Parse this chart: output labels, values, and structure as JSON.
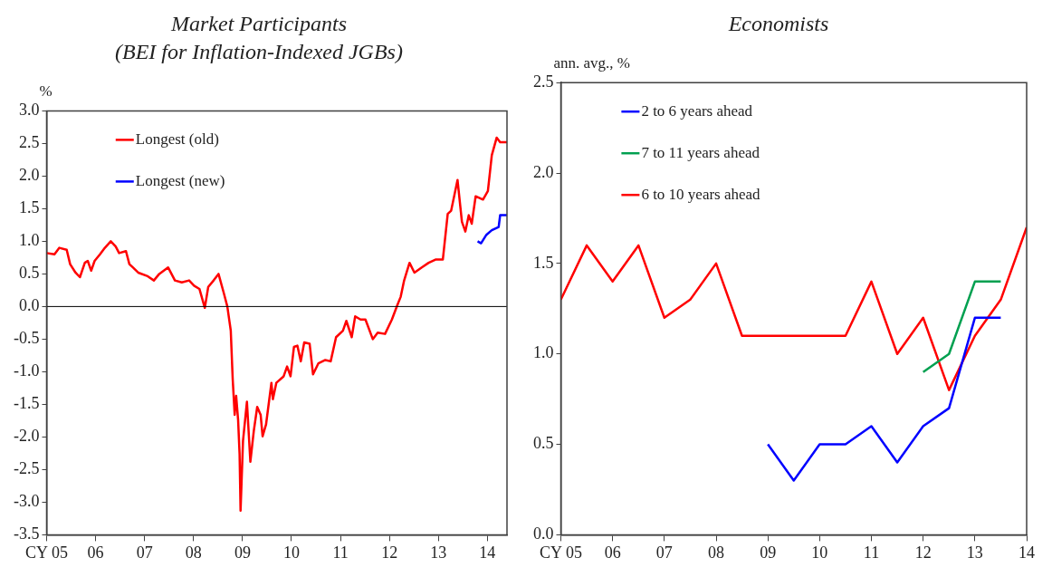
{
  "chart_data": [
    {
      "type": "line",
      "title": "Market Participants\n(BEI for Inflation-Indexed JGBs)",
      "ylabel": "%",
      "xlim": [
        2005,
        2014.4
      ],
      "xticks": [
        {
          "value": 2005,
          "label": "CY 05"
        },
        {
          "value": 2006,
          "label": "06"
        },
        {
          "value": 2007,
          "label": "07"
        },
        {
          "value": 2008,
          "label": "08"
        },
        {
          "value": 2009,
          "label": "09"
        },
        {
          "value": 2010,
          "label": "10"
        },
        {
          "value": 2011,
          "label": "11"
        },
        {
          "value": 2012,
          "label": "12"
        },
        {
          "value": 2013,
          "label": "13"
        },
        {
          "value": 2014,
          "label": "14"
        }
      ],
      "ylim": [
        -3.5,
        3
      ],
      "yticks": [
        {
          "value": -3.5,
          "label": "-3.5"
        },
        {
          "value": -3,
          "label": "-3.0"
        },
        {
          "value": -2.5,
          "label": "-2.5"
        },
        {
          "value": -2,
          "label": "-2.0"
        },
        {
          "value": -1.5,
          "label": "-1.5"
        },
        {
          "value": -1,
          "label": "-1.0"
        },
        {
          "value": -0.5,
          "label": "-0.5"
        },
        {
          "value": 0,
          "label": "0.0"
        },
        {
          "value": 0.5,
          "label": "0.5"
        },
        {
          "value": 1,
          "label": "1.0"
        },
        {
          "value": 1.5,
          "label": "1.5"
        },
        {
          "value": 2,
          "label": "2.0"
        },
        {
          "value": 2.5,
          "label": "2.5"
        },
        {
          "value": 3,
          "label": "3.0"
        }
      ],
      "legend": "top left",
      "ref_lines": [
        {
          "axis": "y",
          "value": 0,
          "color": "#000000"
        }
      ],
      "series": [
        {
          "name": "Longest (old)",
          "color": "#ff0000",
          "x": [
            2005.0,
            2005.16,
            2005.26,
            2005.41,
            2005.48,
            2005.59,
            2005.68,
            2005.78,
            2005.84,
            2005.91,
            2005.98,
            2006.09,
            2006.19,
            2006.31,
            2006.41,
            2006.48,
            2006.62,
            2006.69,
            2006.76,
            2006.87,
            2007.05,
            2007.19,
            2007.3,
            2007.48,
            2007.62,
            2007.76,
            2007.91,
            2008.01,
            2008.12,
            2008.23,
            2008.3,
            2008.41,
            2008.51,
            2008.62,
            2008.69,
            2008.76,
            2008.8,
            2008.84,
            2008.87,
            2008.91,
            2008.94,
            2008.96,
            2009.01,
            2009.09,
            2009.16,
            2009.23,
            2009.3,
            2009.37,
            2009.41,
            2009.48,
            2009.59,
            2009.62,
            2009.69,
            2009.84,
            2009.91,
            2009.98,
            2010.05,
            2010.12,
            2010.19,
            2010.26,
            2010.37,
            2010.44,
            2010.55,
            2010.69,
            2010.8,
            2010.91,
            2011.05,
            2011.12,
            2011.23,
            2011.3,
            2011.41,
            2011.51,
            2011.66,
            2011.76,
            2011.91,
            2012.05,
            2012.16,
            2012.23,
            2012.3,
            2012.41,
            2012.51,
            2012.66,
            2012.8,
            2012.94,
            2013.09,
            2013.19,
            2013.26,
            2013.39,
            2013.48,
            2013.55,
            2013.62,
            2013.68,
            2013.76,
            2013.91,
            2014.01,
            2014.09,
            2014.19,
            2014.26,
            2014.4
          ],
          "values": [
            0.82,
            0.8,
            0.9,
            0.87,
            0.65,
            0.52,
            0.45,
            0.67,
            0.7,
            0.55,
            0.7,
            0.8,
            0.9,
            1.0,
            0.92,
            0.82,
            0.85,
            0.65,
            0.6,
            0.52,
            0.47,
            0.4,
            0.5,
            0.6,
            0.4,
            0.37,
            0.4,
            0.32,
            0.27,
            -0.02,
            0.3,
            0.4,
            0.5,
            0.2,
            0.0,
            -0.37,
            -1.12,
            -1.66,
            -1.37,
            -1.74,
            -2.26,
            -3.13,
            -2.06,
            -1.46,
            -2.38,
            -1.91,
            -1.54,
            -1.66,
            -1.99,
            -1.81,
            -1.17,
            -1.42,
            -1.17,
            -1.07,
            -0.92,
            -1.07,
            -0.62,
            -0.6,
            -0.84,
            -0.55,
            -0.57,
            -1.04,
            -0.87,
            -0.82,
            -0.84,
            -0.47,
            -0.37,
            -0.22,
            -0.47,
            -0.15,
            -0.2,
            -0.2,
            -0.5,
            -0.4,
            -0.42,
            -0.2,
            0.02,
            0.15,
            0.4,
            0.67,
            0.52,
            0.6,
            0.67,
            0.72,
            0.72,
            1.42,
            1.47,
            1.94,
            1.3,
            1.15,
            1.4,
            1.27,
            1.69,
            1.64,
            1.77,
            2.32,
            2.59,
            2.52,
            2.52
          ]
        },
        {
          "name": "Longest (new)",
          "color": "#0000ff",
          "x": [
            2013.8,
            2013.87,
            2013.98,
            2014.09,
            2014.23,
            2014.26,
            2014.4
          ],
          "values": [
            1.0,
            0.97,
            1.1,
            1.17,
            1.22,
            1.4,
            1.4
          ]
        }
      ]
    },
    {
      "type": "line",
      "title": "Economists",
      "ylabel": "ann. avg., %",
      "xlim": [
        2005,
        2014
      ],
      "xticks": [
        {
          "value": 2005,
          "label": "CY 05"
        },
        {
          "value": 2006,
          "label": "06"
        },
        {
          "value": 2007,
          "label": "07"
        },
        {
          "value": 2008,
          "label": "08"
        },
        {
          "value": 2009,
          "label": "09"
        },
        {
          "value": 2010,
          "label": "10"
        },
        {
          "value": 2011,
          "label": "11"
        },
        {
          "value": 2012,
          "label": "12"
        },
        {
          "value": 2013,
          "label": "13"
        },
        {
          "value": 2014,
          "label": "14"
        }
      ],
      "ylim": [
        0,
        2.5
      ],
      "yticks": [
        {
          "value": 0,
          "label": "0.0"
        },
        0.5,
        {
          "value": 1,
          "label": "1.0"
        },
        1.5,
        {
          "value": 2,
          "label": "2.0"
        },
        2.5
      ],
      "legend": "top",
      "series": [
        {
          "name": "2 to 6 years ahead",
          "color": "#0000ff",
          "x": [
            2009,
            2009.5,
            2010,
            2010.5,
            2011,
            2011.5,
            2012,
            2012.5,
            2013,
            2013.5
          ],
          "values": [
            0.5,
            0.3,
            0.5,
            0.5,
            0.6,
            0.4,
            0.6,
            0.7,
            1.2,
            1.2
          ]
        },
        {
          "name": "7 to 11 years ahead",
          "color": "#00a050",
          "x": [
            2012,
            2012.5,
            2013,
            2013.5
          ],
          "values": [
            0.9,
            1.0,
            1.4,
            1.4
          ]
        },
        {
          "name": "6 to 10 years ahead",
          "color": "#ff0000",
          "x": [
            2005,
            2005.5,
            2006,
            2006.5,
            2007,
            2007.5,
            2008,
            2008.5,
            2009,
            2009.5,
            2010,
            2010.5,
            2011,
            2011.5,
            2012,
            2012.5,
            2013,
            2013.5,
            2014
          ],
          "values": [
            1.3,
            1.6,
            1.4,
            1.6,
            1.2,
            1.3,
            1.5,
            1.1,
            1.1,
            1.1,
            1.1,
            1.1,
            1.4,
            1.0,
            1.2,
            0.8,
            1.1,
            1.3,
            1.7
          ]
        }
      ]
    }
  ]
}
